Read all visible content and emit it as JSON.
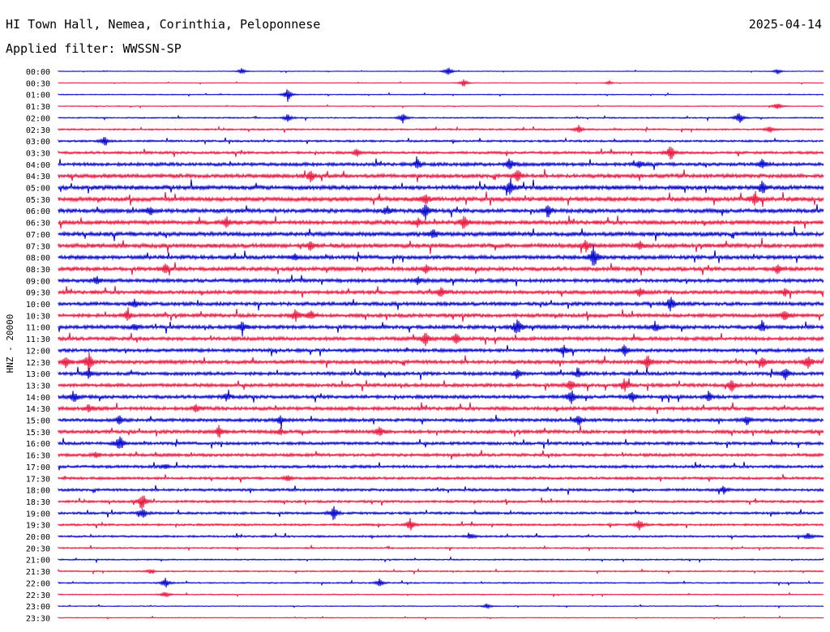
{
  "header": {
    "station": "HI Town Hall, Nemea, Corinthia, Peloponnese",
    "date": "2025-04-14",
    "filter": "Applied filter: WWSSN-SP"
  },
  "chart_data": {
    "type": "line",
    "title": "HI Town Hall, Nemea, Corinthia, Peloponnese",
    "ylabel": "HNZ - 20000",
    "xlabel": "",
    "categories": [
      "00:00",
      "00:30",
      "01:00",
      "01:30",
      "02:00",
      "02:30",
      "03:00",
      "03:30",
      "04:00",
      "04:30",
      "05:00",
      "05:30",
      "06:00",
      "06:30",
      "07:00",
      "07:30",
      "08:00",
      "08:30",
      "09:00",
      "09:30",
      "10:00",
      "10:30",
      "11:00",
      "11:30",
      "12:00",
      "12:30",
      "13:00",
      "13:30",
      "14:00",
      "14:30",
      "15:00",
      "15:30",
      "16:00",
      "16:30",
      "17:00",
      "17:30",
      "18:00",
      "18:30",
      "19:00",
      "19:30",
      "20:00",
      "20:30",
      "21:00",
      "21:30",
      "22:00",
      "22:30",
      "23:00",
      "23:30"
    ],
    "colors": [
      "#0000cc",
      "#e8143c"
    ],
    "noise_levels": [
      0.3,
      0.3,
      0.4,
      0.4,
      0.6,
      0.8,
      0.9,
      1.2,
      1.6,
      1.8,
      2.0,
      2.0,
      1.9,
      1.9,
      2.0,
      2.0,
      1.8,
      1.8,
      1.7,
      1.7,
      1.7,
      1.7,
      1.7,
      1.7,
      1.6,
      1.7,
      1.6,
      1.6,
      1.6,
      1.7,
      1.5,
      1.6,
      1.4,
      1.4,
      1.3,
      1.2,
      1.2,
      1.1,
      1.1,
      1.0,
      0.9,
      0.7,
      0.6,
      0.6,
      0.6,
      0.5,
      0.4,
      0.4
    ],
    "events": [
      [
        [
          0.24,
          4
        ],
        [
          0.51,
          6
        ],
        [
          0.94,
          3
        ]
      ],
      [
        [
          0.53,
          5
        ],
        [
          0.72,
          2
        ]
      ],
      [
        [
          0.3,
          8
        ]
      ],
      [
        [
          0.94,
          5
        ]
      ],
      [
        [
          0.3,
          5
        ],
        [
          0.45,
          7
        ],
        [
          0.89,
          8
        ]
      ],
      [
        [
          0.68,
          5
        ],
        [
          0.93,
          4
        ]
      ],
      [
        [
          0.06,
          6
        ]
      ],
      [
        [
          0.39,
          5
        ],
        [
          0.8,
          10
        ]
      ],
      [
        [
          0.47,
          6
        ],
        [
          0.59,
          7
        ],
        [
          0.76,
          4
        ],
        [
          0.92,
          6
        ]
      ],
      [
        [
          0.33,
          7
        ],
        [
          0.6,
          8
        ]
      ],
      [
        [
          0.59,
          7
        ],
        [
          0.92,
          8
        ]
      ],
      [
        [
          0.48,
          6
        ],
        [
          0.91,
          9
        ]
      ],
      [
        [
          0.12,
          5
        ],
        [
          0.43,
          5
        ],
        [
          0.48,
          9
        ],
        [
          0.64,
          7
        ]
      ],
      [
        [
          0.22,
          6
        ],
        [
          0.47,
          5
        ],
        [
          0.53,
          9
        ]
      ],
      [
        [
          0.49,
          6
        ]
      ],
      [
        [
          0.33,
          6
        ],
        [
          0.69,
          7
        ],
        [
          0.76,
          5
        ]
      ],
      [
        [
          0.31,
          4
        ],
        [
          0.7,
          14
        ]
      ],
      [
        [
          0.14,
          6
        ],
        [
          0.48,
          5
        ],
        [
          0.94,
          6
        ]
      ],
      [
        [
          0.05,
          5
        ],
        [
          0.47,
          5
        ]
      ],
      [
        [
          0.5,
          7
        ],
        [
          0.76,
          5
        ],
        [
          0.95,
          5
        ]
      ],
      [
        [
          0.1,
          5
        ],
        [
          0.8,
          9
        ]
      ],
      [
        [
          0.09,
          6
        ],
        [
          0.31,
          7
        ],
        [
          0.33,
          6
        ],
        [
          0.95,
          7
        ]
      ],
      [
        [
          0.1,
          5
        ],
        [
          0.24,
          6
        ],
        [
          0.6,
          11
        ],
        [
          0.78,
          6
        ],
        [
          0.92,
          7
        ]
      ],
      [
        [
          0.48,
          9
        ],
        [
          0.52,
          7
        ]
      ],
      [
        [
          0.66,
          6
        ],
        [
          0.74,
          7
        ]
      ],
      [
        [
          0.01,
          7
        ],
        [
          0.04,
          12
        ],
        [
          0.77,
          8
        ],
        [
          0.92,
          6
        ],
        [
          0.98,
          8
        ]
      ],
      [
        [
          0.04,
          5
        ],
        [
          0.6,
          7
        ],
        [
          0.68,
          5
        ],
        [
          0.95,
          8
        ]
      ],
      [
        [
          0.67,
          7
        ],
        [
          0.74,
          8
        ],
        [
          0.88,
          7
        ]
      ],
      [
        [
          0.02,
          7
        ],
        [
          0.22,
          5
        ],
        [
          0.67,
          9
        ],
        [
          0.75,
          6
        ],
        [
          0.85,
          6
        ]
      ],
      [
        [
          0.04,
          5
        ],
        [
          0.18,
          5
        ]
      ],
      [
        [
          0.08,
          6
        ],
        [
          0.29,
          5
        ],
        [
          0.68,
          7
        ],
        [
          0.9,
          5
        ]
      ],
      [
        [
          0.21,
          7
        ],
        [
          0.29,
          4
        ],
        [
          0.42,
          6
        ]
      ],
      [
        [
          0.08,
          11
        ]
      ],
      [
        [
          0.05,
          3
        ]
      ],
      [
        [
          0.14,
          3
        ]
      ],
      [
        [
          0.3,
          4
        ]
      ],
      [
        [
          0.87,
          5
        ]
      ],
      [
        [
          0.11,
          10
        ]
      ],
      [
        [
          0.11,
          7
        ],
        [
          0.36,
          9
        ]
      ],
      [
        [
          0.46,
          7
        ],
        [
          0.76,
          7
        ]
      ],
      [
        [
          0.54,
          4
        ],
        [
          0.98,
          4
        ]
      ],
      [],
      [],
      [
        [
          0.12,
          3
        ]
      ],
      [
        [
          0.14,
          6
        ],
        [
          0.42,
          5
        ]
      ],
      [
        [
          0.14,
          4
        ]
      ],
      [
        [
          0.56,
          3
        ]
      ],
      []
    ]
  }
}
